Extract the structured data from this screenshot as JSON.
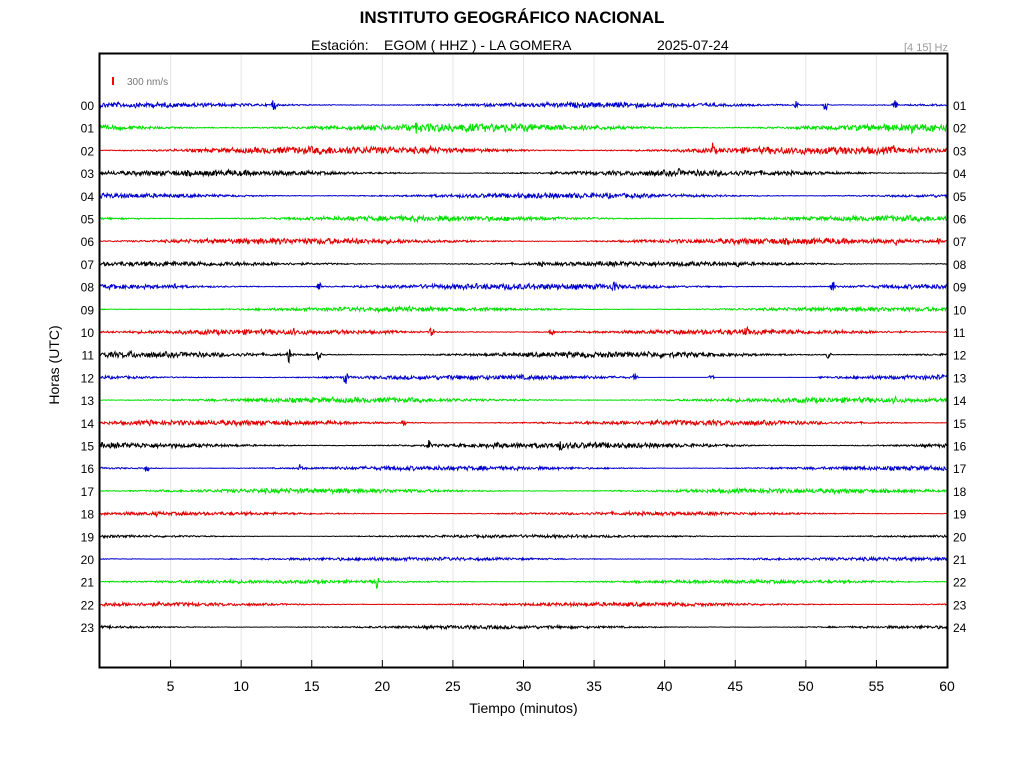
{
  "title": "INSTITUTO GEOGRÁFICO NACIONAL",
  "station_label": "Estación:",
  "station": "EGOM ( HHZ ) - LA GOMERA",
  "date": "2025-07-24",
  "filter": "[4 15] Hz",
  "scale_label": "300 nm/s",
  "colors": {
    "blue": "#0000cc",
    "green": "#00e000",
    "red": "#e00000",
    "black": "#000000",
    "scale_bar": "#ff0000",
    "grid": "#e6e6e6"
  },
  "chart_data": {
    "type": "line",
    "title": "INSTITUTO GEOGRÁFICO NACIONAL",
    "xlabel": "Tiempo (minutos)",
    "ylabel": "Horas (UTC)",
    "xlim": [
      0,
      60
    ],
    "x_ticks": [
      "5",
      "10",
      "15",
      "20",
      "25",
      "30",
      "35",
      "40",
      "45",
      "50",
      "55",
      "60"
    ],
    "grid": "vertical",
    "color_cycle": [
      "blue",
      "green",
      "red",
      "black"
    ],
    "rows": [
      {
        "left": "00",
        "right": "01",
        "amp": 2.4,
        "events": [
          {
            "t": 12.3,
            "a": 8
          },
          {
            "t": 49.3,
            "a": 5
          },
          {
            "t": 51.4,
            "a": 7
          },
          {
            "t": 56.3,
            "a": 6
          }
        ]
      },
      {
        "left": "01",
        "right": "02",
        "amp": 3.8,
        "events": [
          {
            "t": 22.4,
            "a": 6
          },
          {
            "t": 24.3,
            "a": 6
          },
          {
            "t": 57.5,
            "a": 6
          }
        ]
      },
      {
        "left": "02",
        "right": "03",
        "amp": 3.6,
        "events": [
          {
            "t": 23.5,
            "a": 7
          },
          {
            "t": 43.4,
            "a": 9
          },
          {
            "t": 56.2,
            "a": 6
          }
        ]
      },
      {
        "left": "03",
        "right": "04",
        "amp": 2.6,
        "events": [
          {
            "t": 41.0,
            "a": 5
          }
        ]
      },
      {
        "left": "04",
        "right": "05",
        "amp": 2.4,
        "events": [
          {
            "t": 0.2,
            "a": 4
          }
        ]
      },
      {
        "left": "05",
        "right": "06",
        "amp": 2.6,
        "events": []
      },
      {
        "left": "06",
        "right": "07",
        "amp": 2.8,
        "events": [
          {
            "t": 56.4,
            "a": 6
          },
          {
            "t": 59.4,
            "a": 6
          }
        ]
      },
      {
        "left": "07",
        "right": "08",
        "amp": 2.2,
        "events": [
          {
            "t": 31.2,
            "a": 5
          },
          {
            "t": 45.2,
            "a": 5
          }
        ]
      },
      {
        "left": "08",
        "right": "09",
        "amp": 2.8,
        "events": [
          {
            "t": 5.3,
            "a": 5
          },
          {
            "t": 15.5,
            "a": 6
          },
          {
            "t": 36.4,
            "a": 9
          },
          {
            "t": 51.9,
            "a": 8
          }
        ]
      },
      {
        "left": "09",
        "right": "10",
        "amp": 2.0,
        "events": [
          {
            "t": 22.0,
            "a": 5
          },
          {
            "t": 27.3,
            "a": 5
          }
        ]
      },
      {
        "left": "10",
        "right": "11",
        "amp": 2.4,
        "events": [
          {
            "t": 13.7,
            "a": 5
          },
          {
            "t": 23.5,
            "a": 6
          },
          {
            "t": 32.0,
            "a": 5
          },
          {
            "t": 45.8,
            "a": 7
          }
        ]
      },
      {
        "left": "11",
        "right": "12",
        "amp": 2.6,
        "events": [
          {
            "t": 2.2,
            "a": 5
          },
          {
            "t": 13.4,
            "a": 9
          },
          {
            "t": 15.5,
            "a": 6
          },
          {
            "t": 51.6,
            "a": 5
          }
        ]
      },
      {
        "left": "12",
        "right": "13",
        "amp": 2.2,
        "events": [
          {
            "t": 17.4,
            "a": 8
          },
          {
            "t": 37.9,
            "a": 5
          },
          {
            "t": 43.3,
            "a": 4
          }
        ],
        "quiet": [
          [
            38.0,
            50.8
          ]
        ]
      },
      {
        "left": "13",
        "right": "14",
        "amp": 2.4,
        "events": [
          {
            "t": 56.3,
            "a": 6
          }
        ]
      },
      {
        "left": "14",
        "right": "15",
        "amp": 2.4,
        "events": [
          {
            "t": 3.6,
            "a": 5
          },
          {
            "t": 21.5,
            "a": 4
          },
          {
            "t": 42.4,
            "a": 4
          }
        ]
      },
      {
        "left": "15",
        "right": "16",
        "amp": 2.6,
        "events": [
          {
            "t": 23.3,
            "a": 6
          },
          {
            "t": 28.1,
            "a": 6
          },
          {
            "t": 32.6,
            "a": 7
          }
        ]
      },
      {
        "left": "16",
        "right": "17",
        "amp": 2.0,
        "events": [
          {
            "t": 3.3,
            "a": 5
          },
          {
            "t": 14.2,
            "a": 5
          }
        ]
      },
      {
        "left": "17",
        "right": "18",
        "amp": 2.2,
        "events": []
      },
      {
        "left": "18",
        "right": "19",
        "amp": 1.6,
        "events": [
          {
            "t": 4.0,
            "a": 3
          }
        ]
      },
      {
        "left": "19",
        "right": "20",
        "amp": 1.4,
        "events": []
      },
      {
        "left": "20",
        "right": "21",
        "amp": 1.6,
        "events": []
      },
      {
        "left": "21",
        "right": "22",
        "amp": 1.6,
        "events": [
          {
            "t": 19.6,
            "a": 9
          }
        ]
      },
      {
        "left": "22",
        "right": "23",
        "amp": 1.8,
        "events": []
      },
      {
        "left": "23",
        "right": "24",
        "amp": 1.6,
        "events": []
      }
    ]
  }
}
